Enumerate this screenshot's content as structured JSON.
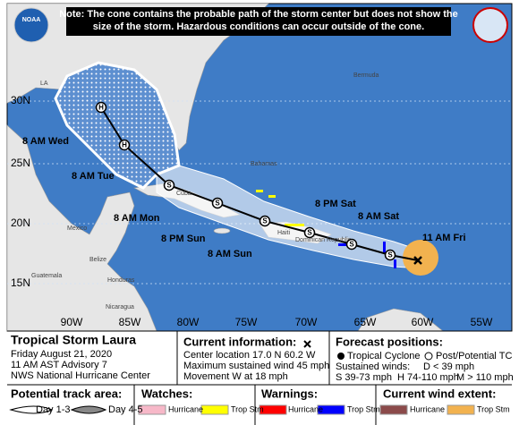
{
  "note": "Note: The cone contains the probable path of the storm center but does not show the size of the storm. Hazardous conditions can occur outside of the cone.",
  "logo": "NOAA",
  "map_labels": [
    "LA",
    "Bermuda",
    "Bahamas",
    "Cuba",
    "Mexico",
    "Haiti",
    "Dominican Republic",
    "Guatemala",
    "Honduras",
    "Nicaragua",
    "Belize"
  ],
  "latitude_labels": [
    "30N",
    "25N",
    "20N",
    "15N"
  ],
  "longitude_labels": [
    "90W",
    "85W",
    "80W",
    "75W",
    "70W",
    "65W",
    "60W",
    "55W"
  ],
  "track_labels": [
    "11 AM Fri",
    "8 AM Sat",
    "8 PM Sat",
    "8 AM Sun",
    "8 PM Sun",
    "8 AM Mon",
    "8 AM Tue",
    "8 AM Wed"
  ],
  "track_symbols": [
    "S",
    "S",
    "S",
    "S",
    "S",
    "S",
    "H",
    "H"
  ],
  "storm": {
    "title": "Tropical Storm Laura",
    "date": "Friday August 21, 2020",
    "advisory": "11 AM AST Advisory 7",
    "center": "NWS National Hurricane Center"
  },
  "current_information": {
    "heading": "Current information:",
    "location": "Center location 17.0 N 60.2 W",
    "wind": "Maximum sustained wind 45 mph",
    "movement": "Movement W at 18 mph"
  },
  "forecast_positions": {
    "heading": "Forecast positions:",
    "tropical": "Tropical Cyclone",
    "post": "Post/Potential TC",
    "winds": "Sustained winds:",
    "d": "D < 39 mph",
    "s": "S 39-73 mph",
    "h": "H 74-110 mph",
    "m": "M > 110 mph"
  },
  "legend": {
    "track_heading": "Potential track area:",
    "day13": "Day 1-3",
    "day45": "Day 4-5",
    "watches_heading": "Watches:",
    "watch_hurricane": "Hurricane",
    "watch_trop": "Trop Stm",
    "warnings_heading": "Warnings:",
    "warning_hurricane": "Hurricane",
    "warning_trop": "Trop Stm",
    "wind_heading": "Current wind extent:",
    "wind_hurricane": "Hurricane",
    "wind_trop": "Trop Stm"
  }
}
